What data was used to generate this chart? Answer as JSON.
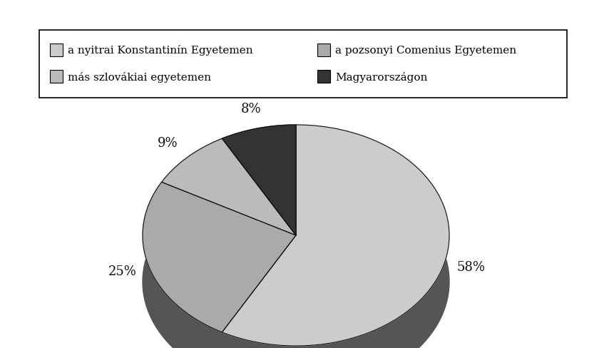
{
  "labels": [
    "a nyitrai Konstantinín Egyetemen",
    "a pozsonyi Comenius Egyetemen",
    "más szlovákiai egyetemen",
    "Magyarországon"
  ],
  "values": [
    58,
    25,
    9,
    8
  ],
  "top_colors": [
    "#cccccc",
    "#aaaaaa",
    "#bbbbbb",
    "#333333"
  ],
  "side_colors": [
    "#888888",
    "#666666",
    "#888888",
    "#111111"
  ],
  "pct_labels": [
    "58%",
    "25%",
    "9%",
    "8%"
  ],
  "legend_labels": [
    "a nyitrai Konstantinín Egyetemen",
    "a pozsonyi Comenius Egyetemen",
    "más szlovákiai egyetemen",
    "Magyarországon"
  ],
  "legend_colors": [
    "#cccccc",
    "#aaaaaa",
    "#bbbbbb",
    "#333333"
  ],
  "background_color": "#ffffff",
  "startangle": 90
}
